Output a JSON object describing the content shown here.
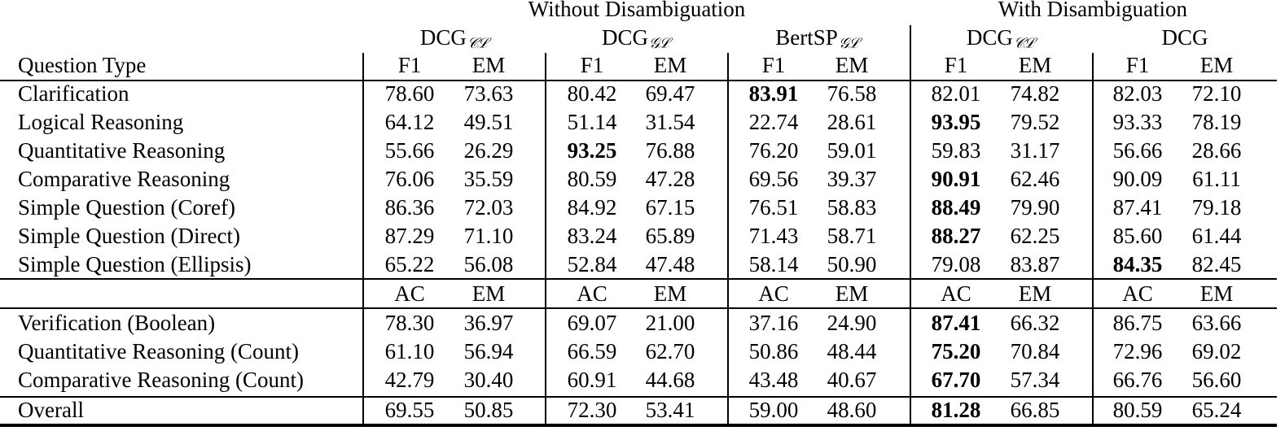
{
  "header": {
    "group_without": "Without Disambiguation",
    "group_with": "With Disambiguation",
    "question_type_label": "Question Type",
    "models": [
      {
        "name": "DCG",
        "subscript": "𝒞ℒ"
      },
      {
        "name": "DCG",
        "subscript": "𝒢ℒ"
      },
      {
        "name": "BertSP",
        "subscript": "𝒢ℒ"
      },
      {
        "name": "DCG",
        "subscript": "𝒞ℒ"
      },
      {
        "name": "DCG",
        "subscript": ""
      }
    ],
    "metrics_top": [
      "F1",
      "EM",
      "F1",
      "EM",
      "F1",
      "EM",
      "F1",
      "EM",
      "F1",
      "EM"
    ],
    "metrics_bottom": [
      "AC",
      "EM",
      "AC",
      "EM",
      "AC",
      "EM",
      "AC",
      "EM",
      "AC",
      "EM"
    ]
  },
  "rows_top": [
    {
      "label": "Clarification",
      "values": [
        "78.60",
        "73.63",
        "80.42",
        "69.47",
        "83.91",
        "76.58",
        "82.01",
        "74.82",
        "82.03",
        "72.10"
      ],
      "bold": [
        4
      ]
    },
    {
      "label": "Logical Reasoning",
      "values": [
        "64.12",
        "49.51",
        "51.14",
        "31.54",
        "22.74",
        "28.61",
        "93.95",
        "79.52",
        "93.33",
        "78.19"
      ],
      "bold": [
        6
      ]
    },
    {
      "label": "Quantitative Reasoning",
      "values": [
        "55.66",
        "26.29",
        "93.25",
        "76.88",
        "76.20",
        "59.01",
        "59.83",
        "31.17",
        "56.66",
        "28.66"
      ],
      "bold": [
        2
      ]
    },
    {
      "label": "Comparative Reasoning",
      "values": [
        "76.06",
        "35.59",
        "80.59",
        "47.28",
        "69.56",
        "39.37",
        "90.91",
        "62.46",
        "90.09",
        "61.11"
      ],
      "bold": [
        6
      ]
    },
    {
      "label": "Simple Question (Coref)",
      "values": [
        "86.36",
        "72.03",
        "84.92",
        "67.15",
        "76.51",
        "58.83",
        "88.49",
        "79.90",
        "87.41",
        "79.18"
      ],
      "bold": [
        6
      ]
    },
    {
      "label": "Simple Question (Direct)",
      "values": [
        "87.29",
        "71.10",
        "83.24",
        "65.89",
        "71.43",
        "58.71",
        "88.27",
        "62.25",
        "85.60",
        "61.44"
      ],
      "bold": [
        6
      ]
    },
    {
      "label": "Simple Question (Ellipsis)",
      "values": [
        "65.22",
        "56.08",
        "52.84",
        "47.48",
        "58.14",
        "50.90",
        "79.08",
        "83.87",
        "84.35",
        "82.45"
      ],
      "bold": [
        8
      ]
    }
  ],
  "rows_bottom": [
    {
      "label": "Verification (Boolean)",
      "values": [
        "78.30",
        "36.97",
        "69.07",
        "21.00",
        "37.16",
        "24.90",
        "87.41",
        "66.32",
        "86.75",
        "63.66"
      ],
      "bold": [
        6
      ]
    },
    {
      "label": "Quantitative Reasoning (Count)",
      "values": [
        "61.10",
        "56.94",
        "66.59",
        "62.70",
        "50.86",
        "48.44",
        "75.20",
        "70.84",
        "72.96",
        "69.02"
      ],
      "bold": [
        6
      ]
    },
    {
      "label": "Comparative Reasoning (Count)",
      "values": [
        "42.79",
        "30.40",
        "60.91",
        "44.68",
        "43.48",
        "40.67",
        "67.70",
        "57.34",
        "66.76",
        "56.60"
      ],
      "bold": [
        6
      ]
    }
  ],
  "overall": {
    "label": "Overall",
    "values": [
      "69.55",
      "50.85",
      "72.30",
      "53.41",
      "59.00",
      "48.60",
      "81.28",
      "66.85",
      "80.59",
      "65.24"
    ],
    "bold": [
      6
    ]
  }
}
